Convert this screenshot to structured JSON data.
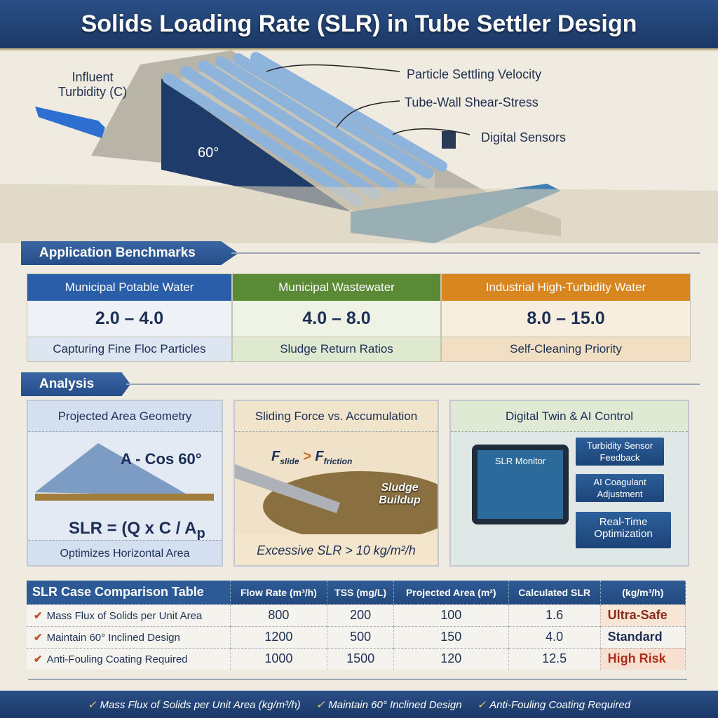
{
  "title": "Solids Loading Rate (SLR) in Tube Settler Design",
  "hero": {
    "influent": "Influent Turbidity (C)",
    "angle": "60°",
    "labels": [
      "Particle Settling Velocity",
      "Tube-Wall Shear-Stress",
      "Digital Sensors"
    ]
  },
  "benchmarks": {
    "tab": "Application Benchmarks",
    "columns": [
      {
        "header": "Municipal Potable Water",
        "value": "2.0 – 4.0",
        "caption": "Capturing Fine Floc Particles",
        "color": "#2a5ea8"
      },
      {
        "header": "Municipal Wastewater",
        "value": "4.0 – 8.0",
        "caption": "Sludge Return Ratios",
        "color": "#5a8a35"
      },
      {
        "header": "Industrial High-Turbidity Water",
        "value": "8.0 – 15.0",
        "caption": "Self-Cleaning Priority",
        "color": "#d8861f"
      }
    ]
  },
  "analysis": {
    "tab": "Analysis",
    "panels": [
      {
        "title": "Projected Area Geometry",
        "formula_a": "A - Cos 60°",
        "formula": "SLR = (Q x C / A",
        "formula_sub": "p",
        "footer": "Optimizes Horizontal Area"
      },
      {
        "title": "Sliding Force vs. Accumulation",
        "f1": "F",
        "f1_sub": "slide",
        "gt": ">",
        "f2": "F",
        "f2_sub": "friction",
        "sludge": "Sludge Buildup",
        "footer": "Excessive SLR > 10 kg/m²/h"
      },
      {
        "title": "Digital Twin & AI Control",
        "monitor": "SLR Monitor",
        "callouts": [
          "Turbidity Sensor Feedback",
          "AI Coagulant Adjustment",
          "Real-Time Optimization"
        ]
      }
    ]
  },
  "table": {
    "title": "SLR Case Comparison Table",
    "headers": [
      "Flow Rate (m³/h)",
      "TSS (mg/L)",
      "Projected Area (m²)",
      "Calculated SLR",
      "(kg/m³/h)"
    ],
    "rows": [
      {
        "label": "Mass Flux of Solids per Unit Area",
        "flow": "800",
        "tss": "200",
        "area": "100",
        "slr": "1.6",
        "status": "Ultra-Safe",
        "status_color": "#8b2a1a"
      },
      {
        "label": "Maintain 60° Inclined Design",
        "flow": "1200",
        "tss": "500",
        "area": "150",
        "slr": "4.0",
        "status": "Standard",
        "status_color": "#1c2f55"
      },
      {
        "label": "Anti-Fouling Coating Required",
        "flow": "1000",
        "tss": "1500",
        "area": "120",
        "slr": "12.5",
        "status": "High Risk",
        "status_color": "#b02a18"
      }
    ]
  },
  "footer": [
    "Mass Flux of Solids per Unit Area (kg/m³/h)",
    "Maintain 60° Inclined Design",
    "Anti-Fouling Coating Required"
  ]
}
